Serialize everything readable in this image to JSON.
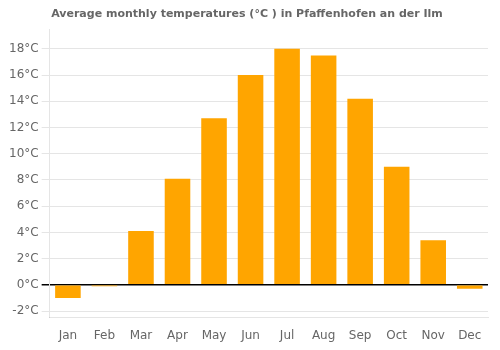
{
  "chart_data": {
    "type": "bar",
    "title": "Average monthly temperatures (°C ) in Pfaffenhofen an der Ilm",
    "categories": [
      "Jan",
      "Feb",
      "Mar",
      "Apr",
      "May",
      "Jun",
      "Jul",
      "Aug",
      "Sep",
      "Oct",
      "Nov",
      "Dec"
    ],
    "values": [
      -1.0,
      -0.1,
      4.1,
      8.1,
      12.7,
      16.0,
      18.0,
      17.5,
      14.2,
      9.0,
      3.4,
      -0.3
    ],
    "color": "#FFA500",
    "ylim": [
      -2.5,
      19.5
    ],
    "yticks": [
      {
        "value": -2,
        "label": "-2°C"
      },
      {
        "value": 0,
        "label": "0°C"
      },
      {
        "value": 2,
        "label": "2°C"
      },
      {
        "value": 4,
        "label": "4°C"
      },
      {
        "value": 6,
        "label": "6°C"
      },
      {
        "value": 8,
        "label": "8°C"
      },
      {
        "value": 10,
        "label": "10°C"
      },
      {
        "value": 12,
        "label": "12°C"
      },
      {
        "value": 14,
        "label": "14°C"
      },
      {
        "value": 16,
        "label": "16°C"
      },
      {
        "value": 18,
        "label": "18°C"
      }
    ],
    "grid": true
  }
}
